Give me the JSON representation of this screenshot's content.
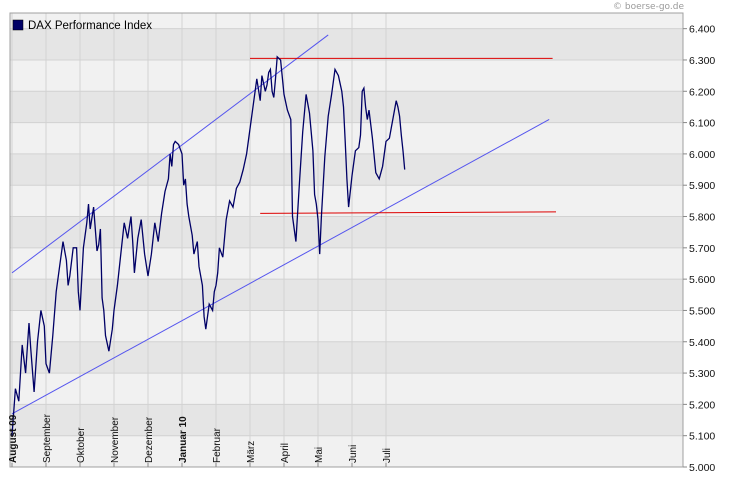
{
  "watermark": "© boerse-go.de",
  "chart_data": {
    "type": "line",
    "title": "DAX Performance Index",
    "legend": [
      {
        "name": "DAX Performance Index",
        "color": "#000066"
      }
    ],
    "xlabel": "",
    "ylabel": "",
    "ylim": [
      5000,
      6450
    ],
    "y_ticks": [
      5000,
      5100,
      5200,
      5300,
      5400,
      5500,
      5600,
      5700,
      5800,
      5900,
      6000,
      6100,
      6200,
      6300,
      6400
    ],
    "y_tick_labels": [
      "5.000",
      "5.100",
      "5.200",
      "5.300",
      "5.400",
      "5.500",
      "5.600",
      "5.700",
      "5.800",
      "5.900",
      "6.000",
      "6.100",
      "6.200",
      "6.300",
      "6.400"
    ],
    "x_months": [
      {
        "label": "August 09",
        "pos": 0.0,
        "bold": true
      },
      {
        "label": "September",
        "pos": 1.0,
        "bold": false
      },
      {
        "label": "Oktober",
        "pos": 2.0,
        "bold": false
      },
      {
        "label": "November",
        "pos": 3.0,
        "bold": false
      },
      {
        "label": "Dezember",
        "pos": 4.0,
        "bold": false
      },
      {
        "label": "Januar 10",
        "pos": 5.0,
        "bold": true
      },
      {
        "label": "Februar",
        "pos": 6.0,
        "bold": false
      },
      {
        "label": "März",
        "pos": 7.0,
        "bold": false
      },
      {
        "label": "April",
        "pos": 8.0,
        "bold": false
      },
      {
        "label": "Mai",
        "pos": 9.0,
        "bold": false
      },
      {
        "label": "Juni",
        "pos": 10.0,
        "bold": false
      },
      {
        "label": "Juli",
        "pos": 11.0,
        "bold": false
      }
    ],
    "x_range": [
      0,
      12.6
    ],
    "colors": {
      "series": "#000066",
      "channel": "#5555ee",
      "level": "#dd0000",
      "band_a": "#f1f1f1",
      "band_b": "#e5e5e5",
      "grid": "#d2d2d2"
    },
    "series": [
      {
        "name": "DAX Performance Index",
        "points": [
          [
            0.0,
            5100
          ],
          [
            0.1,
            5250
          ],
          [
            0.2,
            5210
          ],
          [
            0.3,
            5390
          ],
          [
            0.4,
            5300
          ],
          [
            0.5,
            5460
          ],
          [
            0.55,
            5380
          ],
          [
            0.65,
            5240
          ],
          [
            0.75,
            5400
          ],
          [
            0.85,
            5500
          ],
          [
            0.95,
            5450
          ],
          [
            1.0,
            5330
          ],
          [
            1.1,
            5300
          ],
          [
            1.2,
            5420
          ],
          [
            1.3,
            5560
          ],
          [
            1.4,
            5640
          ],
          [
            1.5,
            5720
          ],
          [
            1.6,
            5660
          ],
          [
            1.65,
            5580
          ],
          [
            1.7,
            5610
          ],
          [
            1.8,
            5700
          ],
          [
            1.9,
            5700
          ],
          [
            1.95,
            5560
          ],
          [
            2.0,
            5500
          ],
          [
            2.1,
            5700
          ],
          [
            2.2,
            5780
          ],
          [
            2.25,
            5840
          ],
          [
            2.3,
            5760
          ],
          [
            2.4,
            5830
          ],
          [
            2.5,
            5690
          ],
          [
            2.55,
            5710
          ],
          [
            2.6,
            5760
          ],
          [
            2.65,
            5540
          ],
          [
            2.7,
            5500
          ],
          [
            2.75,
            5420
          ],
          [
            2.85,
            5370
          ],
          [
            2.95,
            5440
          ],
          [
            3.0,
            5500
          ],
          [
            3.1,
            5580
          ],
          [
            3.2,
            5680
          ],
          [
            3.3,
            5780
          ],
          [
            3.4,
            5730
          ],
          [
            3.5,
            5800
          ],
          [
            3.55,
            5720
          ],
          [
            3.6,
            5620
          ],
          [
            3.7,
            5730
          ],
          [
            3.8,
            5790
          ],
          [
            3.9,
            5680
          ],
          [
            4.0,
            5610
          ],
          [
            4.1,
            5680
          ],
          [
            4.2,
            5780
          ],
          [
            4.3,
            5720
          ],
          [
            4.4,
            5810
          ],
          [
            4.5,
            5880
          ],
          [
            4.6,
            5920
          ],
          [
            4.65,
            6000
          ],
          [
            4.7,
            5960
          ],
          [
            4.75,
            6030
          ],
          [
            4.8,
            6040
          ],
          [
            4.9,
            6030
          ],
          [
            5.0,
            6000
          ],
          [
            5.05,
            5900
          ],
          [
            5.1,
            5920
          ],
          [
            5.15,
            5840
          ],
          [
            5.2,
            5800
          ],
          [
            5.3,
            5740
          ],
          [
            5.35,
            5680
          ],
          [
            5.45,
            5720
          ],
          [
            5.5,
            5640
          ],
          [
            5.6,
            5580
          ],
          [
            5.65,
            5480
          ],
          [
            5.7,
            5440
          ],
          [
            5.8,
            5520
          ],
          [
            5.9,
            5500
          ],
          [
            5.95,
            5560
          ],
          [
            6.0,
            5580
          ],
          [
            6.05,
            5620
          ],
          [
            6.1,
            5700
          ],
          [
            6.2,
            5670
          ],
          [
            6.3,
            5790
          ],
          [
            6.4,
            5850
          ],
          [
            6.5,
            5830
          ],
          [
            6.6,
            5890
          ],
          [
            6.7,
            5910
          ],
          [
            6.8,
            5950
          ],
          [
            6.9,
            6000
          ],
          [
            6.95,
            6040
          ],
          [
            7.0,
            6080
          ],
          [
            7.1,
            6160
          ],
          [
            7.2,
            6240
          ],
          [
            7.3,
            6170
          ],
          [
            7.35,
            6250
          ],
          [
            7.45,
            6200
          ],
          [
            7.5,
            6220
          ],
          [
            7.55,
            6260
          ],
          [
            7.6,
            6270
          ],
          [
            7.65,
            6200
          ],
          [
            7.7,
            6180
          ],
          [
            7.75,
            6240
          ],
          [
            7.8,
            6310
          ],
          [
            7.9,
            6300
          ],
          [
            8.0,
            6190
          ],
          [
            8.1,
            6140
          ],
          [
            8.2,
            6110
          ],
          [
            8.25,
            5800
          ],
          [
            8.3,
            5760
          ],
          [
            8.35,
            5720
          ],
          [
            8.45,
            5900
          ],
          [
            8.55,
            6070
          ],
          [
            8.65,
            6190
          ],
          [
            8.75,
            6130
          ],
          [
            8.85,
            6010
          ],
          [
            8.9,
            5870
          ],
          [
            8.95,
            5840
          ],
          [
            9.0,
            5790
          ],
          [
            9.05,
            5680
          ],
          [
            9.1,
            5800
          ],
          [
            9.2,
            5990
          ],
          [
            9.3,
            6120
          ],
          [
            9.4,
            6190
          ],
          [
            9.5,
            6270
          ],
          [
            9.6,
            6250
          ],
          [
            9.7,
            6200
          ],
          [
            9.75,
            6150
          ],
          [
            9.8,
            6040
          ],
          [
            9.85,
            5920
          ],
          [
            9.9,
            5830
          ],
          [
            10.0,
            5930
          ],
          [
            10.1,
            6010
          ],
          [
            10.2,
            6020
          ],
          [
            10.25,
            6060
          ],
          [
            10.3,
            6200
          ],
          [
            10.35,
            6210
          ],
          [
            10.4,
            6150
          ],
          [
            10.45,
            6110
          ],
          [
            10.5,
            6140
          ],
          [
            10.6,
            6050
          ],
          [
            10.7,
            5940
          ],
          [
            10.8,
            5920
          ],
          [
            10.9,
            5960
          ],
          [
            10.95,
            6000
          ],
          [
            11.0,
            6040
          ],
          [
            11.1,
            6050
          ],
          [
            11.2,
            6110
          ],
          [
            11.3,
            6170
          ],
          [
            11.35,
            6150
          ],
          [
            11.4,
            6120
          ],
          [
            11.45,
            6060
          ],
          [
            11.5,
            6010
          ],
          [
            11.55,
            5950
          ]
        ]
      }
    ],
    "trendlines": [
      {
        "kind": "channel",
        "from": [
          0.0,
          5620
        ],
        "to": [
          9.3,
          6380
        ]
      },
      {
        "kind": "channel",
        "from": [
          0.0,
          5170
        ],
        "to": [
          15.8,
          6110
        ]
      },
      {
        "kind": "level",
        "from": [
          7.0,
          6305
        ],
        "to": [
          15.9,
          6305
        ]
      },
      {
        "kind": "level",
        "from": [
          7.3,
          5810
        ],
        "to": [
          16.0,
          5815
        ]
      }
    ]
  }
}
